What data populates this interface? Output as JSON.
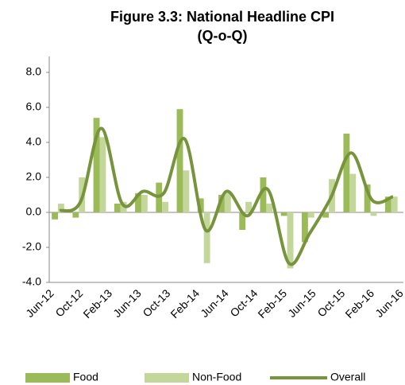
{
  "chart_data": {
    "type": "bar-line",
    "title": "Figure 3.3: National Headline CPI",
    "subtitle": "(Q-o-Q)",
    "xticks": [
      "Jun-12",
      "Oct-12",
      "Feb-13",
      "Jun-13",
      "Oct-13",
      "Feb-14",
      "Jun-14",
      "Oct-14",
      "Feb-15",
      "Jun-15",
      "Oct-15",
      "Feb-16",
      "Jun-16"
    ],
    "series": [
      {
        "name": "Food",
        "color": "#9bbb59",
        "kind": "bar",
        "values": [
          -0.4,
          -0.3,
          5.4,
          0.5,
          1.1,
          1.7,
          5.9,
          0.8,
          1.0,
          -1.0,
          2.0,
          -0.2,
          -1.7,
          -0.3,
          4.5,
          1.6,
          0.9
        ]
      },
      {
        "name": "Non-Food",
        "color": "#c4d79b",
        "kind": "bar",
        "values": [
          0.5,
          2.0,
          4.3,
          0.6,
          1.0,
          0.6,
          2.4,
          -2.9,
          1.1,
          0.6,
          0.5,
          -3.2,
          -0.3,
          1.9,
          2.2,
          -0.2,
          0.9
        ]
      },
      {
        "name": "Overall",
        "color": "#77933c",
        "kind": "line",
        "values": [
          0.1,
          0.6,
          4.8,
          0.5,
          1.2,
          1.1,
          4.2,
          -1.0,
          1.2,
          -0.2,
          1.3,
          -2.9,
          -1.2,
          0.8,
          3.4,
          0.7,
          0.9
        ]
      }
    ],
    "ylim": [
      -4,
      8
    ],
    "yticks": [
      {
        "value": -4,
        "label": "-4.0"
      },
      {
        "value": -2,
        "label": "-2.0"
      },
      {
        "value": 0,
        "label": "0.0"
      },
      {
        "value": 2,
        "label": "2.0"
      },
      {
        "value": 4,
        "label": "4.0"
      },
      {
        "value": 6,
        "label": "6.0"
      },
      {
        "value": 8,
        "label": "8.0"
      }
    ],
    "legend": "bottom"
  }
}
